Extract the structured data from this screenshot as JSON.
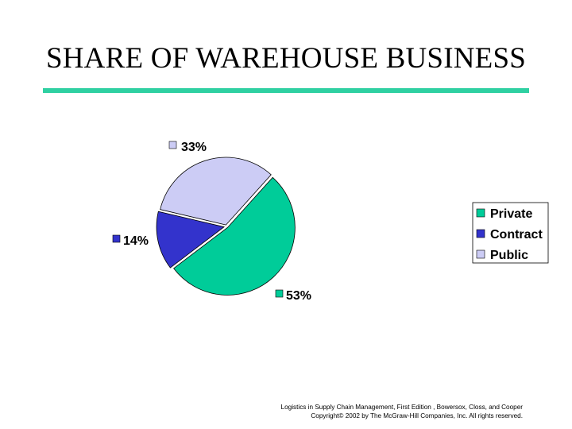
{
  "slide": {
    "title": "SHARE OF WAREHOUSE BUSINESS",
    "rule_color": "#2fd0a2",
    "copyright_line1": "Logistics in Supply Chain Management, First Edition , Bowersox, Closs, and Cooper",
    "copyright_line2": "Copyright© 2002 by The McGraw-Hill Companies, Inc. All rights reserved."
  },
  "chart_data": {
    "type": "pie",
    "slices": [
      {
        "name": "Private",
        "value": 53,
        "label": "53%",
        "color": "#00cc99"
      },
      {
        "name": "Contract",
        "value": 14,
        "label": "14%",
        "color": "#3333cc"
      },
      {
        "name": "Public",
        "value": 33,
        "label": "33%",
        "color": "#ccccf5"
      }
    ],
    "legend_position": "right"
  }
}
